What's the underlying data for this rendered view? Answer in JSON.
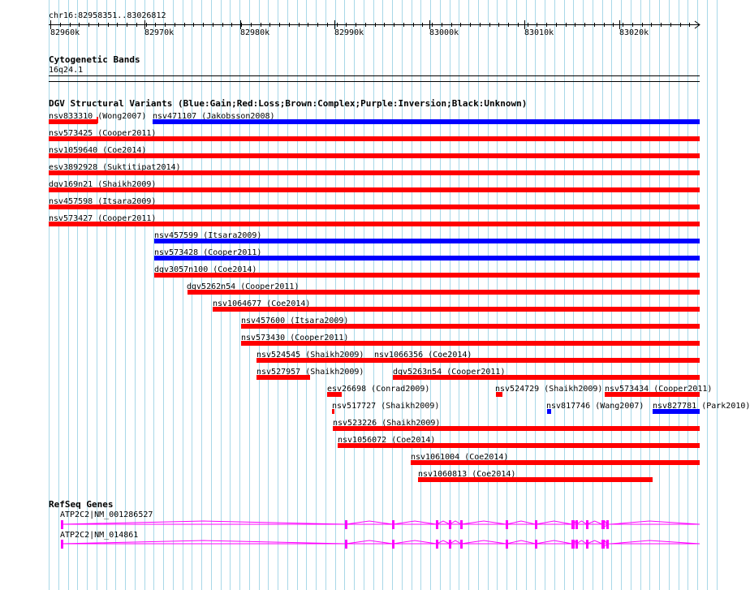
{
  "ruler": {
    "position": "chr16:82958351..83026812",
    "ticks": [
      "82960k",
      "82970k",
      "82980k",
      "82990k",
      "83000k",
      "83010k",
      "83020k"
    ]
  },
  "cytoband": {
    "title": "Cytogenetic Bands",
    "band": "16q24.1"
  },
  "dgv": {
    "title": "DGV Structural Variants (Blue:Gain;Red:Loss;Brown:Complex;Purple:Inversion;Black:Unknown)",
    "colors": {
      "gain": "#0000ff",
      "loss": "#ff0000"
    },
    "variants": [
      {
        "label": "nsv833310 (Wong2007)",
        "type": "loss"
      },
      {
        "label": "nsv471107 (Jakobsson2008)",
        "type": "gain"
      },
      {
        "label": "nsv573425 (Cooper2011)",
        "type": "loss"
      },
      {
        "label": "nsv1059640 (Coe2014)",
        "type": "loss"
      },
      {
        "label": "esv3892928 (Suktitipat2014)",
        "type": "loss"
      },
      {
        "label": "dgv169n21 (Shaikh2009)",
        "type": "loss"
      },
      {
        "label": "nsv457598 (Itsara2009)",
        "type": "loss"
      },
      {
        "label": "nsv573427 (Cooper2011)",
        "type": "loss"
      },
      {
        "label": "nsv457599 (Itsara2009)",
        "type": "gain"
      },
      {
        "label": "nsv573428 (Cooper2011)",
        "type": "gain"
      },
      {
        "label": "dgv3057n100 (Coe2014)",
        "type": "loss"
      },
      {
        "label": "dgv5262n54 (Cooper2011)",
        "type": "loss"
      },
      {
        "label": "nsv1064677 (Coe2014)",
        "type": "loss"
      },
      {
        "label": "nsv457600 (Itsara2009)",
        "type": "loss"
      },
      {
        "label": "nsv573430 (Cooper2011)",
        "type": "loss"
      },
      {
        "label": "nsv524545 (Shaikh2009)",
        "type": "loss"
      },
      {
        "label": "nsv1066356 (Coe2014)",
        "type": "loss"
      },
      {
        "label": "nsv527957 (Shaikh2009)",
        "type": "loss"
      },
      {
        "label": "dgv5263n54 (Cooper2011)",
        "type": "loss"
      },
      {
        "label": "esv26698 (Conrad2009)",
        "type": "loss"
      },
      {
        "label": "nsv524729 (Shaikh2009)",
        "type": "loss"
      },
      {
        "label": "nsv573434 (Cooper2011)",
        "type": "loss"
      },
      {
        "label": "nsv517727 (Shaikh2009)",
        "type": "loss"
      },
      {
        "label": "nsv817746 (Wang2007)",
        "type": "gain"
      },
      {
        "label": "nsv827781 (Park2010)",
        "type": "gain"
      },
      {
        "label": "nsv523226 (Shaikh2009)",
        "type": "loss"
      },
      {
        "label": "nsv1056072 (Coe2014)",
        "type": "loss"
      },
      {
        "label": "nsv1061004 (Coe2014)",
        "type": "loss"
      },
      {
        "label": "nsv1060813 (Coe2014)",
        "type": "loss"
      }
    ]
  },
  "refseq": {
    "title": "RefSeq Genes",
    "color": "#ff00ff",
    "genes": [
      {
        "label": "ATP2C2|NM_001286527"
      },
      {
        "label": "ATP2C2|NM_014861"
      }
    ]
  }
}
